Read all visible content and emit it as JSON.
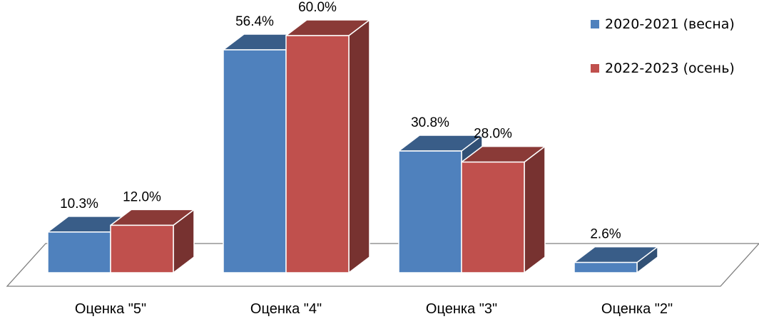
{
  "chart_data": {
    "type": "bar",
    "categories": [
      "Оценка \"5\"",
      "Оценка \"4\"",
      "Оценка \"3\"",
      "Оценка \"2\""
    ],
    "series": [
      {
        "name": "2020-2021 (весна)",
        "values": [
          10.3,
          56.4,
          30.8,
          2.6
        ],
        "labels": [
          "10.3%",
          "56.4%",
          "30.8%",
          "2.6%"
        ],
        "color": "#4F81BD"
      },
      {
        "name": "2022-2023 (осень)",
        "values": [
          12.0,
          60.0,
          28.0,
          null
        ],
        "labels": [
          "12.0%",
          "60.0%",
          "28.0%",
          ""
        ],
        "color": "#C0504D"
      }
    ],
    "three_d": true,
    "legend_position": "top-right",
    "grid": false,
    "ylim": [
      0,
      60
    ]
  }
}
